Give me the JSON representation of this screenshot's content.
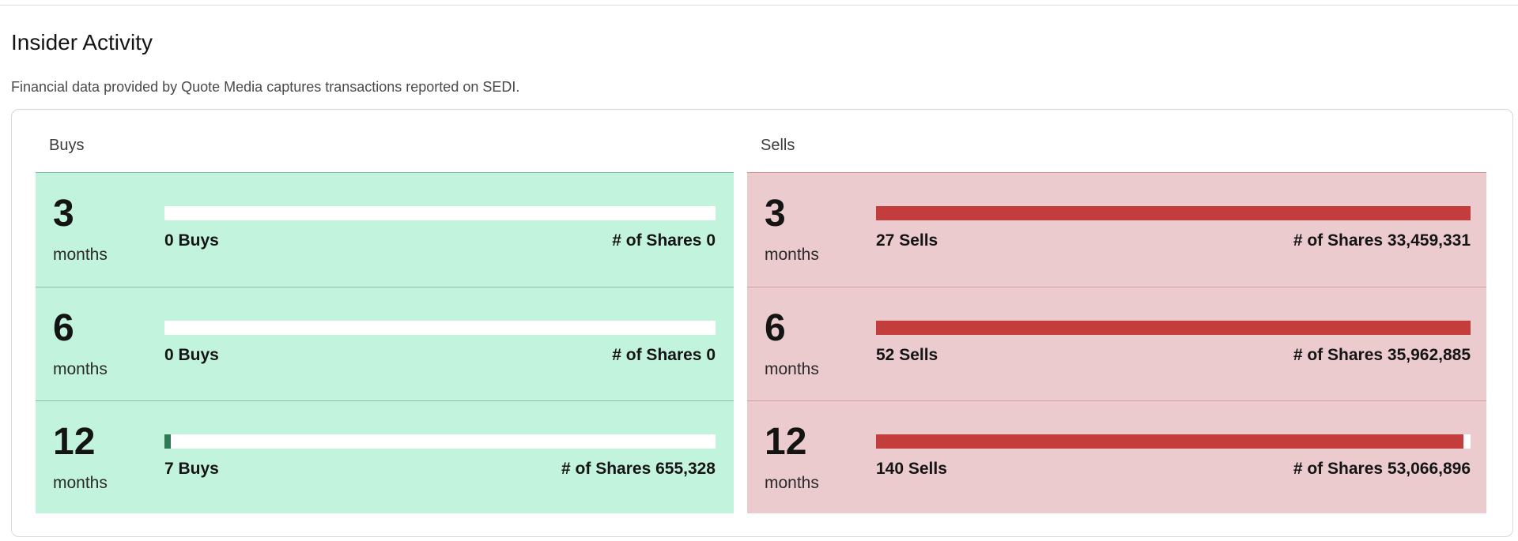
{
  "section": {
    "title": "Insider Activity",
    "subtitle": "Financial data provided by Quote Media captures transactions reported on SEDI."
  },
  "buys": {
    "heading": "Buys",
    "rows": [
      {
        "period": "3",
        "unit": "months",
        "count_label": "0 Buys",
        "shares_label": "# of Shares 0",
        "fill_fraction": 0.0
      },
      {
        "period": "6",
        "unit": "months",
        "count_label": "0 Buys",
        "shares_label": "# of Shares 0",
        "fill_fraction": 0.0
      },
      {
        "period": "12",
        "unit": "months",
        "count_label": "7 Buys",
        "shares_label": "# of Shares 655,328",
        "fill_fraction": 0.012
      }
    ]
  },
  "sells": {
    "heading": "Sells",
    "rows": [
      {
        "period": "3",
        "unit": "months",
        "count_label": "27 Sells",
        "shares_label": "# of Shares 33,459,331",
        "fill_fraction": 1.0
      },
      {
        "period": "6",
        "unit": "months",
        "count_label": "52 Sells",
        "shares_label": "# of Shares 35,962,885",
        "fill_fraction": 1.0
      },
      {
        "period": "12",
        "unit": "months",
        "count_label": "140 Sells",
        "shares_label": "# of Shares 53,066,896",
        "fill_fraction": 0.988
      }
    ]
  },
  "colors": {
    "buys_bg": "#c2f3dd",
    "buys_bar": "#2f7a52",
    "sells_bg": "#ebcbce",
    "sells_bar": "#c43d3d"
  }
}
